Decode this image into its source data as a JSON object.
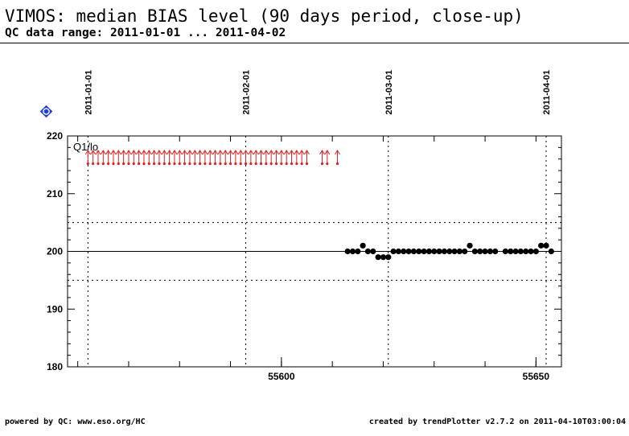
{
  "header": {
    "title": "VIMOS: median BIAS level (90 days period, close-up)",
    "subtitle": "QC data range: 2011-01-01 ... 2011-04-02"
  },
  "footer": {
    "left": "powered by QC: www.eso.org/HC",
    "right": "created by trendPlotter v2.7.2 on 2011-04-10T03:00:04"
  },
  "help_icon": {
    "label": "?",
    "color": "#1f3fd8"
  },
  "chart_data": {
    "type": "scatter",
    "panel_label": "Q1/lo",
    "xlim": [
      55558,
      55655
    ],
    "ylim": [
      180,
      220
    ],
    "yticks": [
      180,
      190,
      200,
      210,
      220
    ],
    "xticks": [
      55600,
      55650
    ],
    "date_markers": [
      {
        "label": "2011-01-01",
        "x": 55562
      },
      {
        "label": "2011-02-01",
        "x": 55593
      },
      {
        "label": "2011-03-01",
        "x": 55621
      },
      {
        "label": "2011-04-01",
        "x": 55652
      }
    ],
    "reference_line": 200,
    "threshold_lines": [
      195,
      205
    ],
    "colors": {
      "points": "#000000",
      "out_of_range": "#e02020"
    },
    "out_of_range_x": [
      55562,
      55563,
      55564,
      55565,
      55566,
      55567,
      55568,
      55569,
      55570,
      55571,
      55572,
      55573,
      55574,
      55575,
      55576,
      55577,
      55578,
      55579,
      55580,
      55581,
      55582,
      55583,
      55584,
      55585,
      55586,
      55587,
      55588,
      55589,
      55590,
      55591,
      55592,
      55593,
      55594,
      55595,
      55596,
      55597,
      55598,
      55599,
      55600,
      55601,
      55602,
      55603,
      55604,
      55605,
      55608,
      55609,
      55611
    ],
    "points": [
      {
        "x": 55613,
        "y": 200
      },
      {
        "x": 55614,
        "y": 200
      },
      {
        "x": 55615,
        "y": 200
      },
      {
        "x": 55616,
        "y": 201
      },
      {
        "x": 55617,
        "y": 200
      },
      {
        "x": 55618,
        "y": 200
      },
      {
        "x": 55619,
        "y": 199
      },
      {
        "x": 55620,
        "y": 199
      },
      {
        "x": 55621,
        "y": 199
      },
      {
        "x": 55622,
        "y": 200
      },
      {
        "x": 55623,
        "y": 200
      },
      {
        "x": 55624,
        "y": 200
      },
      {
        "x": 55625,
        "y": 200
      },
      {
        "x": 55626,
        "y": 200
      },
      {
        "x": 55627,
        "y": 200
      },
      {
        "x": 55628,
        "y": 200
      },
      {
        "x": 55629,
        "y": 200
      },
      {
        "x": 55630,
        "y": 200
      },
      {
        "x": 55631,
        "y": 200
      },
      {
        "x": 55632,
        "y": 200
      },
      {
        "x": 55633,
        "y": 200
      },
      {
        "x": 55634,
        "y": 200
      },
      {
        "x": 55635,
        "y": 200
      },
      {
        "x": 55636,
        "y": 200
      },
      {
        "x": 55637,
        "y": 201
      },
      {
        "x": 55638,
        "y": 200
      },
      {
        "x": 55639,
        "y": 200
      },
      {
        "x": 55640,
        "y": 200
      },
      {
        "x": 55641,
        "y": 200
      },
      {
        "x": 55642,
        "y": 200
      },
      {
        "x": 55644,
        "y": 200
      },
      {
        "x": 55645,
        "y": 200
      },
      {
        "x": 55646,
        "y": 200
      },
      {
        "x": 55647,
        "y": 200
      },
      {
        "x": 55648,
        "y": 200
      },
      {
        "x": 55649,
        "y": 200
      },
      {
        "x": 55650,
        "y": 200
      },
      {
        "x": 55651,
        "y": 201
      },
      {
        "x": 55652,
        "y": 201
      },
      {
        "x": 55653,
        "y": 200
      }
    ]
  }
}
